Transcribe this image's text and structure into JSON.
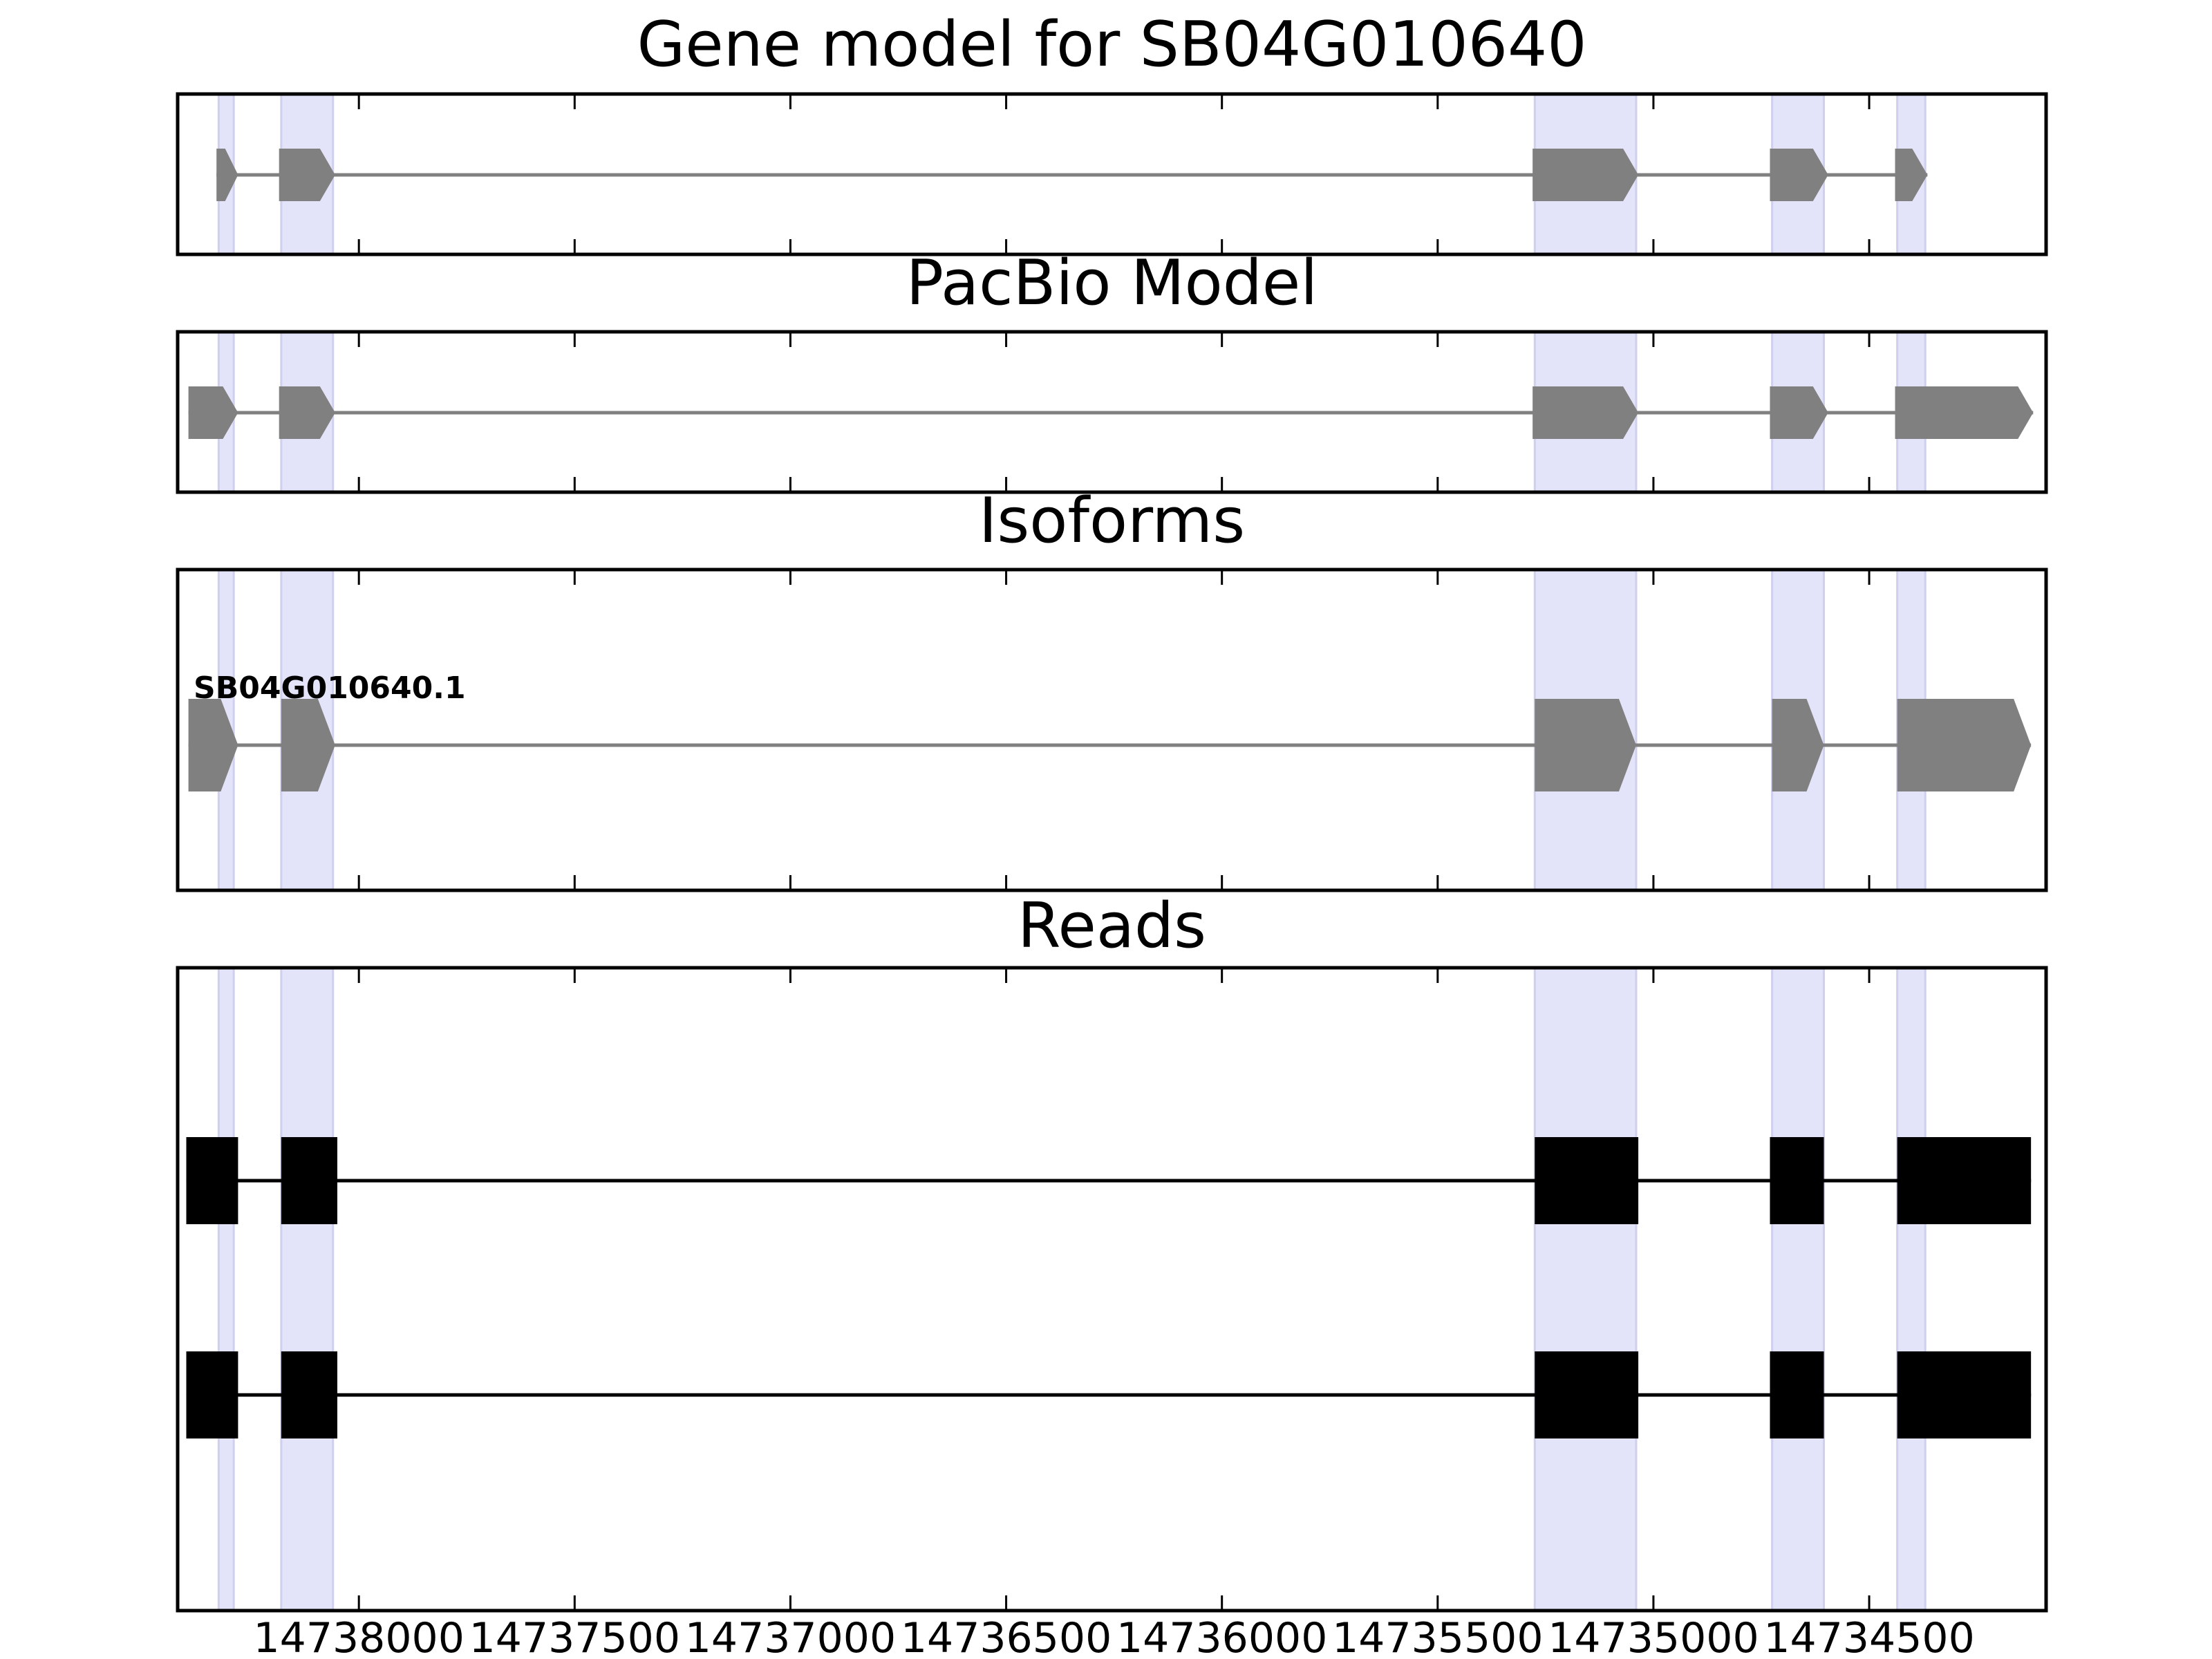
{
  "chart_data": {
    "type": "gene-structure",
    "xlim": [
      14738420,
      14734090
    ],
    "x_axis": {
      "reversed": true,
      "ticks": [
        14738000,
        14737500,
        14737000,
        14736500,
        14736000,
        14735500,
        14735000,
        14734500
      ],
      "tick_labels": [
        "14738000",
        "14737500",
        "14737000",
        "14736500",
        "14736000",
        "14735500",
        "14735000",
        "14734500"
      ]
    },
    "highlight_color": "#e3e3fa",
    "highlight_regions": [
      [
        14738325,
        14738290
      ],
      [
        14738180,
        14738060
      ],
      [
        14735275,
        14735040
      ],
      [
        14734725,
        14734605
      ],
      [
        14734435,
        14734370
      ]
    ],
    "panels": [
      {
        "title": "Gene model for SB04G010640",
        "feature_color": "#808080",
        "tracks": [
          {
            "label": "",
            "exons": [
              [
                14738330,
                14738280
              ],
              [
                14738185,
                14738055
              ],
              [
                14735280,
                14735035
              ],
              [
                14734730,
                14734595
              ],
              [
                14734440,
                14734365
              ]
            ]
          }
        ]
      },
      {
        "title": "PacBio Model",
        "feature_color": "#808080",
        "tracks": [
          {
            "label": "",
            "exons": [
              [
                14738395,
                14738280
              ],
              [
                14738185,
                14738055
              ],
              [
                14735280,
                14735035
              ],
              [
                14734730,
                14734595
              ],
              [
                14734440,
                14734120
              ]
            ]
          }
        ]
      },
      {
        "title": "Isoforms",
        "feature_color": "#808080",
        "tracks": [
          {
            "label": "SB04G010640.1",
            "exons": [
              [
                14738395,
                14738280
              ],
              [
                14738180,
                14738055
              ],
              [
                14735275,
                14735040
              ],
              [
                14734725,
                14734605
              ],
              [
                14734435,
                14734125
              ]
            ]
          }
        ]
      },
      {
        "title": "Reads",
        "feature_color": "#000000",
        "tracks": [
          {
            "label": "",
            "exons": [
              [
                14738400,
                14738280
              ],
              [
                14738180,
                14738050
              ],
              [
                14735275,
                14735035
              ],
              [
                14734730,
                14734605
              ],
              [
                14734435,
                14734125
              ]
            ]
          },
          {
            "label": "",
            "exons": [
              [
                14738400,
                14738280
              ],
              [
                14738180,
                14738050
              ],
              [
                14735275,
                14735035
              ],
              [
                14734730,
                14734605
              ],
              [
                14734435,
                14734125
              ]
            ]
          }
        ]
      }
    ]
  }
}
